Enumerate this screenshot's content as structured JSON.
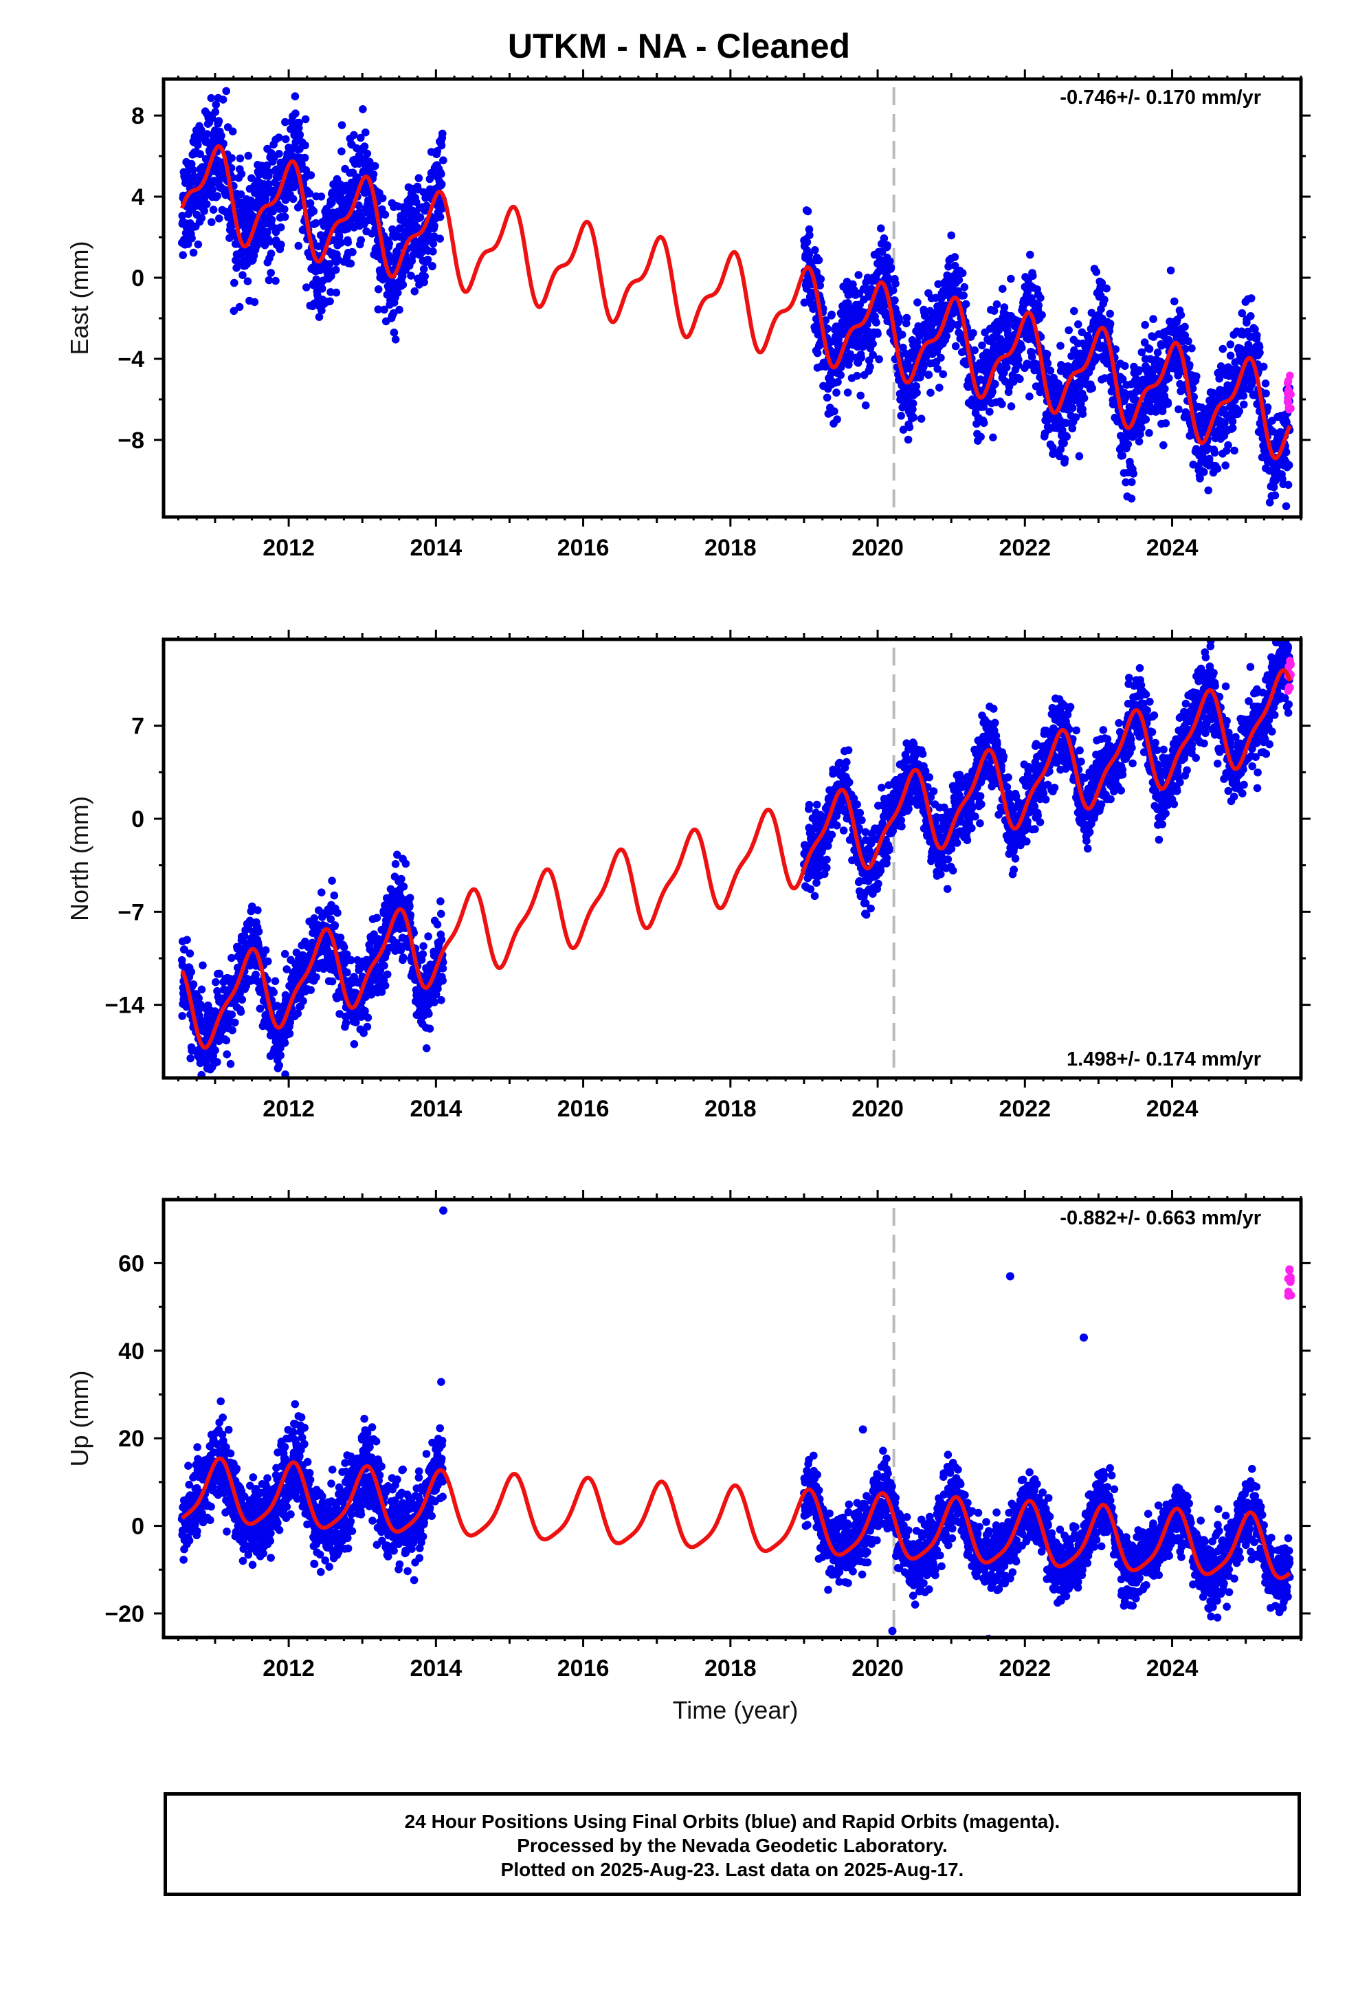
{
  "title": "UTKM  - NA - Cleaned",
  "xlabel": "Time (year)",
  "footer": {
    "line1": "24 Hour Positions Using Final Orbits (blue) and Rapid Orbits (magenta).",
    "line2": "Processed by the Nevada Geodetic Laboratory.",
    "line3": "Plotted on 2025-Aug-23. Last data on 2025-Aug-17."
  },
  "colors": {
    "final": "#0000ee",
    "rapid": "#ff22ee",
    "model": "#ee1111",
    "event_line": "#bbbbbb"
  },
  "chart_data": [
    {
      "type": "scatter",
      "name": "east",
      "ylabel": "East (mm)",
      "rate": "-0.746+/- 0.170 mm/yr",
      "rate_position": "top-right",
      "xlim": [
        2010.3,
        2025.75
      ],
      "ylim": [
        -11.8,
        9.8
      ],
      "xticks": [
        2012,
        2014,
        2016,
        2018,
        2020,
        2022,
        2024
      ],
      "yticks": [
        8,
        4,
        0,
        -4,
        -8
      ],
      "event_line_x": 2020.22,
      "model": {
        "intercept": 4.5,
        "rate": -0.746,
        "annual_amp": 1.9,
        "annual_phase": 1.7,
        "semi_amp": 0.8,
        "semi_phase": 0.3,
        "x0": 2010.55,
        "x1": 2025.6
      },
      "data_segments": [
        {
          "x0": 2010.55,
          "x1": 2014.1,
          "scatter": 1.4
        },
        {
          "x0": 2019.0,
          "x1": 2025.6,
          "scatter": 1.2
        }
      ],
      "rapid_points": {
        "x0": 2025.57,
        "x1": 2025.62,
        "count": 12,
        "y_center": -6.2,
        "spread": 1.4
      }
    },
    {
      "type": "scatter",
      "name": "north",
      "ylabel": "North (mm)",
      "rate": "1.498+/- 0.174 mm/yr",
      "rate_position": "bottom-right",
      "xlim": [
        2010.3,
        2025.75
      ],
      "ylim": [
        -19.5,
        13.5
      ],
      "xticks": [
        2012,
        2014,
        2016,
        2018,
        2020,
        2022,
        2024
      ],
      "yticks": [
        7,
        0,
        -7,
        -14
      ],
      "event_line_x": 2020.22,
      "model": {
        "intercept": -14.5,
        "rate": 1.498,
        "annual_amp": 2.8,
        "annual_phase": -1.2,
        "semi_amp": 0.9,
        "semi_phase": 0.8,
        "x0": 2010.55,
        "x1": 2025.6
      },
      "data_segments": [
        {
          "x0": 2010.55,
          "x1": 2014.1,
          "scatter": 1.5
        },
        {
          "x0": 2019.0,
          "x1": 2025.6,
          "scatter": 1.4
        }
      ],
      "rapid_points": {
        "x0": 2025.57,
        "x1": 2025.62,
        "count": 12,
        "y_center": 10.5,
        "spread": 1.6
      }
    },
    {
      "type": "scatter",
      "name": "up",
      "ylabel": "Up (mm)",
      "rate": "-0.882+/- 0.663 mm/yr",
      "rate_position": "top-right",
      "xlim": [
        2010.3,
        2025.75
      ],
      "ylim": [
        -25.5,
        74.5
      ],
      "xticks": [
        2012,
        2014,
        2016,
        2018,
        2020,
        2022,
        2024
      ],
      "yticks": [
        60,
        40,
        20,
        0,
        -20
      ],
      "event_line_x": 2020.22,
      "model": {
        "intercept": 7.5,
        "rate": -0.882,
        "annual_amp": 7.0,
        "annual_phase": 1.3,
        "semi_amp": 1.5,
        "semi_phase": 0.4,
        "x0": 2010.55,
        "x1": 2025.6
      },
      "data_segments": [
        {
          "x0": 2010.55,
          "x1": 2014.1,
          "scatter": 4.5
        },
        {
          "x0": 2019.0,
          "x1": 2025.6,
          "scatter": 3.8
        }
      ],
      "outliers": [
        [
          2014.1,
          72
        ],
        [
          2021.8,
          57
        ],
        [
          2022.8,
          43
        ],
        [
          2020.2,
          -24
        ],
        [
          2019.8,
          22
        ]
      ],
      "rapid_points": {
        "x0": 2025.57,
        "x1": 2025.62,
        "count": 14,
        "y_center": 55,
        "spread": 5
      }
    }
  ]
}
